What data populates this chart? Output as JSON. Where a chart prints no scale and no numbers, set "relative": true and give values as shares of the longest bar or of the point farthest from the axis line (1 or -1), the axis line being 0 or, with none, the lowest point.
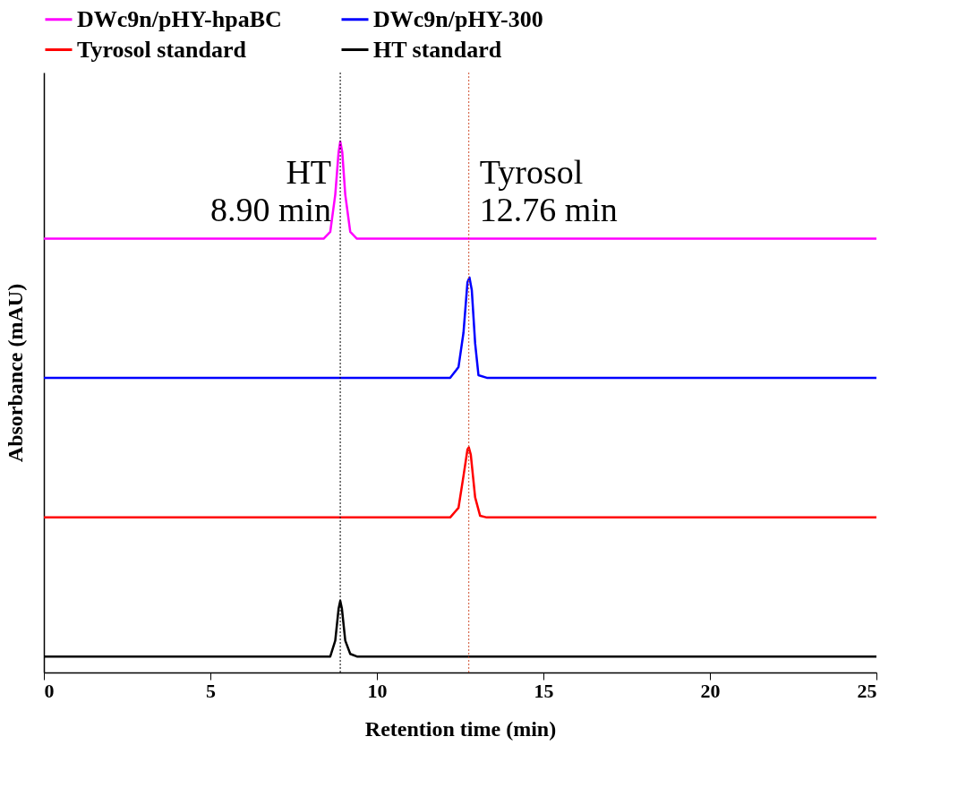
{
  "chart_data": {
    "type": "line",
    "relative": true,
    "xlabel": "Retention time (min)",
    "ylabel": "Absorbance (mAU)",
    "xlim": [
      0,
      25
    ],
    "xticks": [
      0,
      5,
      10,
      15,
      20,
      25
    ],
    "tick_labels": "x",
    "grid": false,
    "legend": "top",
    "line_style": "solid",
    "marker": "none",
    "series": [
      {
        "name": "DWc9n/pHY-hpaBC",
        "color": "#ff00ff",
        "x": [
          0,
          8.4,
          8.6,
          8.75,
          8.85,
          8.9,
          8.96,
          9.05,
          9.2,
          9.4,
          25
        ],
        "values": [
          0.817,
          0.817,
          0.83,
          0.9,
          0.98,
          1.0,
          0.98,
          0.9,
          0.83,
          0.817,
          0.817
        ]
      },
      {
        "name": "DWc9n/pHY-300",
        "color": "#0000ff",
        "x": [
          0,
          12.2,
          12.45,
          12.6,
          12.72,
          12.78,
          12.85,
          12.95,
          13.05,
          13.3,
          25
        ],
        "values": [
          0.555,
          0.555,
          0.575,
          0.64,
          0.735,
          0.744,
          0.72,
          0.62,
          0.56,
          0.555,
          0.555
        ]
      },
      {
        "name": "Tyrosol standard",
        "color": "#ff0000",
        "x": [
          0,
          12.2,
          12.45,
          12.6,
          12.72,
          12.76,
          12.82,
          12.95,
          13.1,
          13.3,
          25
        ],
        "values": [
          0.292,
          0.292,
          0.31,
          0.37,
          0.42,
          0.424,
          0.41,
          0.33,
          0.295,
          0.292,
          0.292
        ]
      },
      {
        "name": "HT standard",
        "color": "#000000",
        "x": [
          0,
          8.6,
          8.75,
          8.85,
          8.9,
          8.95,
          9.05,
          9.2,
          9.4,
          25
        ],
        "values": [
          0.03,
          0.03,
          0.06,
          0.12,
          0.135,
          0.12,
          0.06,
          0.035,
          0.03,
          0.03
        ]
      }
    ],
    "ref_lines": [
      {
        "axis": "x",
        "value": 8.9,
        "color": "#000000",
        "line_style": "dotted"
      },
      {
        "axis": "x",
        "value": 12.76,
        "color": "#d05030",
        "line_style": "dotted"
      }
    ],
    "annotations": [
      {
        "text": "HT\n8.90 min",
        "x": 8.9,
        "y": 0.94
      },
      {
        "text": "Tyrosol\n12.76 min",
        "x": 12.76,
        "y": 0.94
      }
    ]
  }
}
